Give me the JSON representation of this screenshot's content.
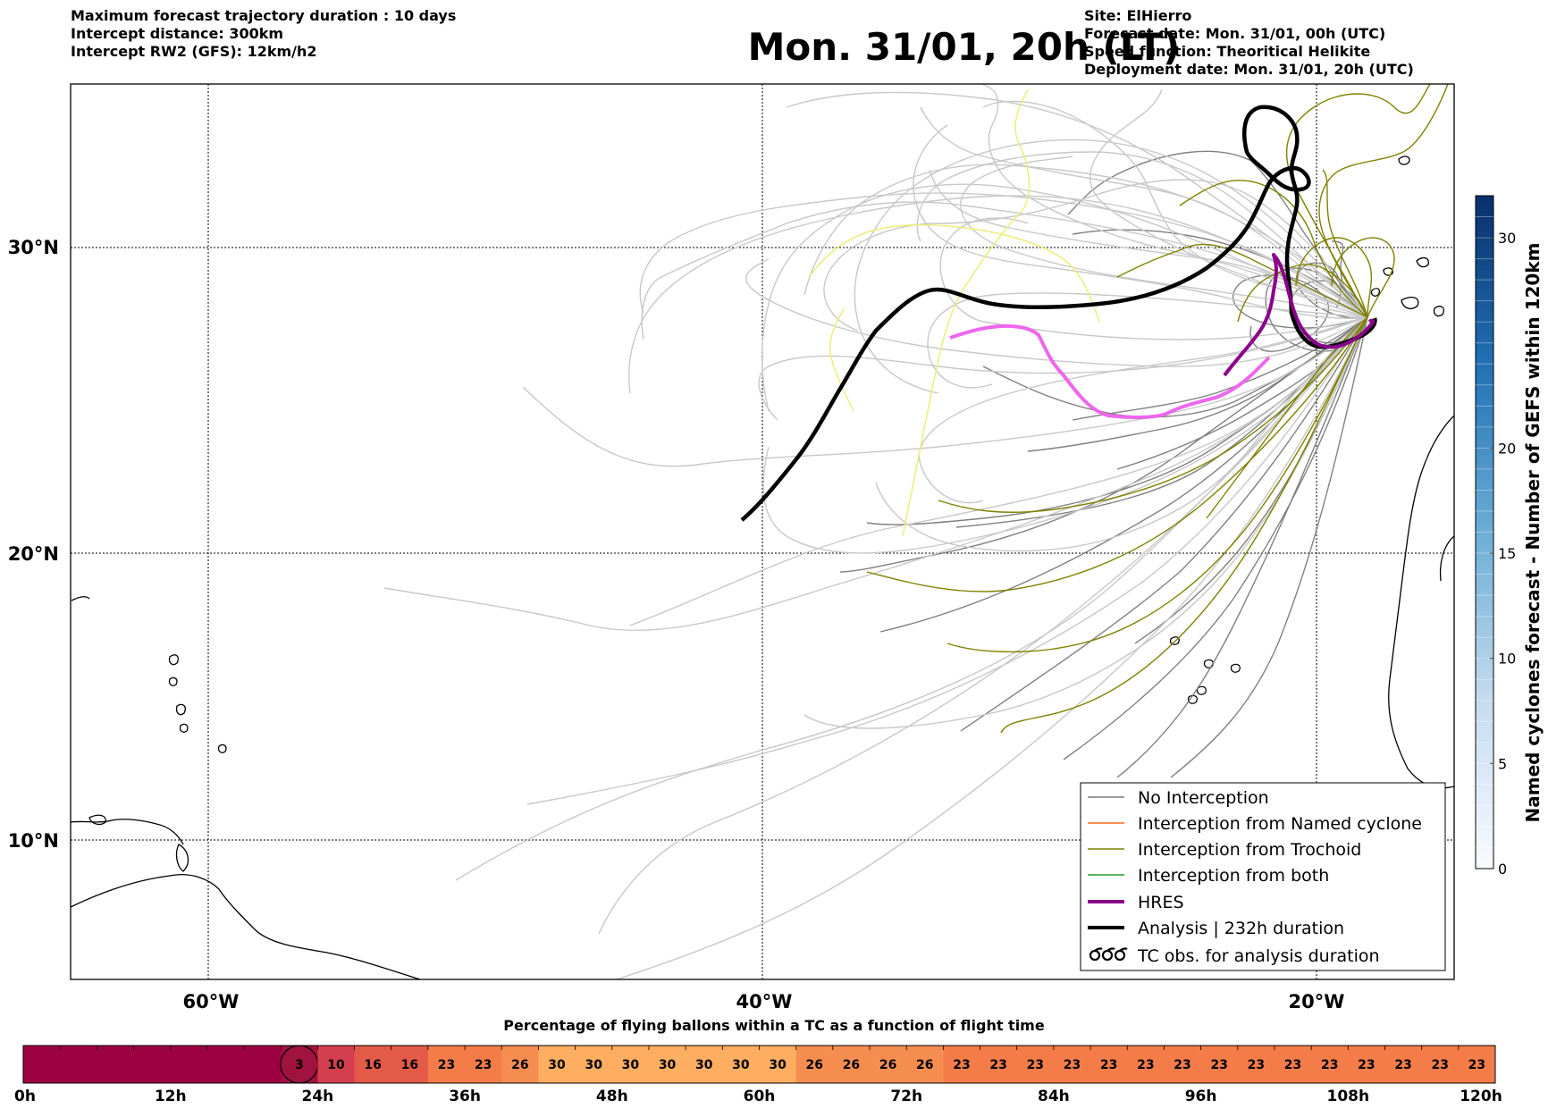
{
  "header": {
    "title": "Mon. 31/01, 20h (LT)",
    "left_info": [
      "Maximum forecast trajectory duration : 10 days",
      "Intercept distance: 300km",
      "Intercept RW2 (GFS):  12km/h2"
    ],
    "right_info": [
      "Site: ElHierro",
      "Forecast date: Mon. 31/01, 00h (UTC)",
      "Speed function: Theoritical Helikite",
      "Deployment date: Mon. 31/01, 20h (UTC)"
    ]
  },
  "map": {
    "lat_labels": [
      "30°N",
      "20°N",
      "10°N"
    ],
    "lon_labels": [
      "60°W",
      "40°W",
      "20°W"
    ],
    "extent": {
      "lon_min": -65,
      "lon_max": -15,
      "lat_min": 4.7,
      "lat_max": 35.3
    },
    "grid": true
  },
  "legend": {
    "position": "lower-right",
    "items": [
      {
        "label": "No Interception",
        "color": "#7a7a7a",
        "style": "thin"
      },
      {
        "label": "Interception from Named cyclone",
        "color": "#ff6a1a",
        "style": "thin"
      },
      {
        "label": "Interception from Trochoid",
        "color": "#808000",
        "style": "thin"
      },
      {
        "label": "Interception from both",
        "color": "#1f9f1f",
        "style": "thin"
      },
      {
        "label": "HRES",
        "color": "#8b008b",
        "style": "thick"
      },
      {
        "label": "Analysis | 232h duration",
        "color": "#000000",
        "style": "thick"
      },
      {
        "label": "TC obs. for analysis duration",
        "color": "#000000",
        "style": "symbol"
      }
    ]
  },
  "colorbar": {
    "label": "Named cyclones forecast - Number of GEFS within 120km",
    "ticks": [
      "0",
      "5",
      "10",
      "15",
      "20",
      "30"
    ],
    "range": [
      0,
      32
    ]
  },
  "timeline": {
    "title": "Percentage of flying ballons within a TC as a function of flight time",
    "values": [
      0,
      0,
      0,
      0,
      0,
      0,
      0,
      3,
      10,
      16,
      16,
      23,
      23,
      26,
      30,
      30,
      30,
      30,
      30,
      30,
      30,
      26,
      26,
      26,
      26,
      23,
      23,
      23,
      23,
      23,
      23,
      23,
      23,
      23,
      23,
      23,
      23,
      23,
      23,
      23
    ],
    "labels": [
      "",
      "",
      "",
      "",
      "",
      "",
      "",
      "3",
      "10",
      "16",
      "16",
      "23",
      "23",
      "26",
      "30",
      "30",
      "30",
      "30",
      "30",
      "30",
      "30",
      "26",
      "26",
      "26",
      "26",
      "23",
      "23",
      "23",
      "23",
      "23",
      "23",
      "23",
      "23",
      "23",
      "23",
      "23",
      "23",
      "23",
      "23",
      "23"
    ],
    "highlight_index": 7,
    "tick_labels": [
      "0h",
      "12h",
      "24h",
      "36h",
      "48h",
      "60h",
      "72h",
      "84h",
      "96h",
      "108h",
      "120h"
    ]
  }
}
